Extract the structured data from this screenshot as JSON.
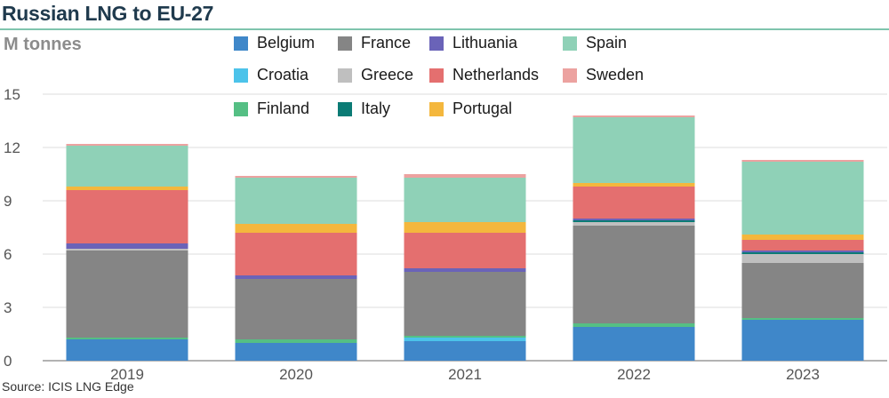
{
  "title": "Russian LNG to EU-27",
  "unit_label": "M tonnes",
  "source": "Source: ICIS LNG Edge",
  "chart_data": {
    "type": "bar",
    "stacked": true,
    "categories": [
      "2019",
      "2020",
      "2021",
      "2022",
      "2023"
    ],
    "ylim": [
      0,
      15
    ],
    "yticks": [
      "0",
      "3",
      "6",
      "9",
      "12",
      "15"
    ],
    "grid": true,
    "series": [
      {
        "name": "Belgium",
        "color": "#3f87c9",
        "values": [
          1.2,
          1.0,
          1.1,
          1.9,
          2.3
        ]
      },
      {
        "name": "Croatia",
        "color": "#4cc3ea",
        "values": [
          0.0,
          0.0,
          0.2,
          0.0,
          0.0
        ]
      },
      {
        "name": "Finland",
        "color": "#55bf84",
        "values": [
          0.1,
          0.2,
          0.1,
          0.2,
          0.1
        ]
      },
      {
        "name": "France",
        "color": "#858585",
        "values": [
          4.9,
          3.4,
          3.6,
          5.5,
          3.1
        ]
      },
      {
        "name": "Greece",
        "color": "#bfbfbf",
        "values": [
          0.1,
          0.0,
          0.0,
          0.2,
          0.5
        ]
      },
      {
        "name": "Italy",
        "color": "#0b7b75",
        "values": [
          0.0,
          0.0,
          0.0,
          0.1,
          0.1
        ]
      },
      {
        "name": "Lithuania",
        "color": "#6a63b8",
        "values": [
          0.3,
          0.2,
          0.2,
          0.1,
          0.1
        ]
      },
      {
        "name": "Netherlands",
        "color": "#e46f6f",
        "values": [
          3.0,
          2.4,
          2.0,
          1.8,
          0.6
        ]
      },
      {
        "name": "Portugal",
        "color": "#f4b73d",
        "values": [
          0.2,
          0.5,
          0.6,
          0.2,
          0.3
        ]
      },
      {
        "name": "Spain",
        "color": "#8fd1b7",
        "values": [
          2.3,
          2.6,
          2.5,
          3.7,
          4.1
        ]
      },
      {
        "name": "Sweden",
        "color": "#eca2a0",
        "values": [
          0.1,
          0.1,
          0.2,
          0.1,
          0.1
        ]
      }
    ],
    "legend_order": [
      "Belgium",
      "France",
      "Lithuania",
      "Spain",
      "Croatia",
      "Greece",
      "Netherlands",
      "Sweden",
      "Finland",
      "Italy",
      "Portugal"
    ]
  }
}
